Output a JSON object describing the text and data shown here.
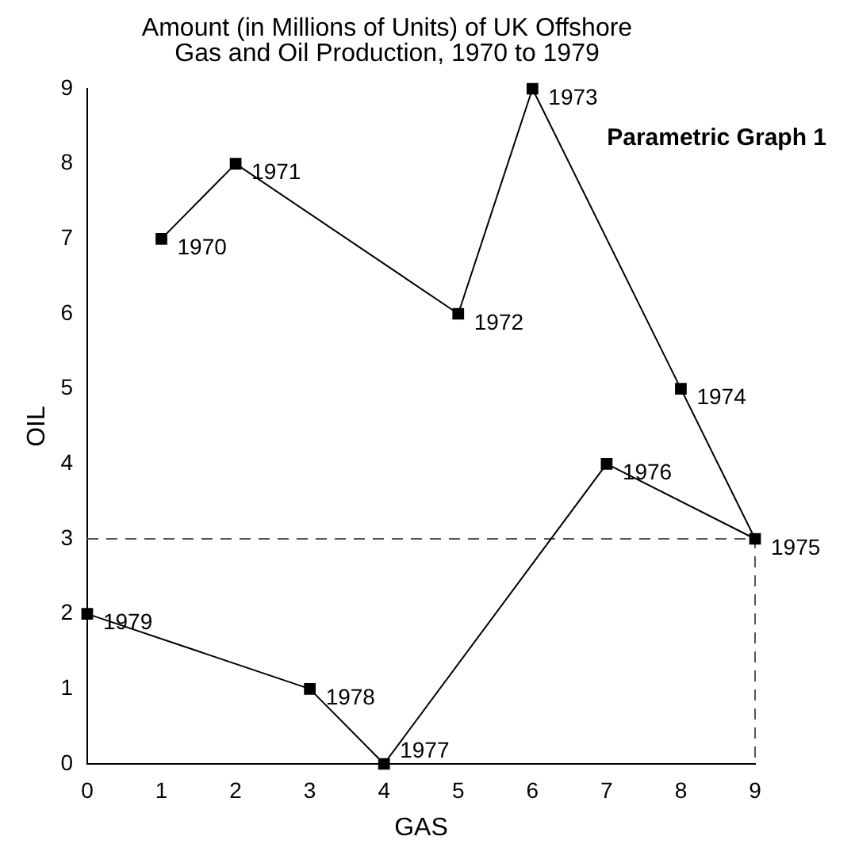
{
  "chart_data": {
    "type": "line",
    "title": "Amount (in Millions of Units) of UK Offshore Gas and Oil Production, 1970 to 1979",
    "xlabel": "GAS",
    "ylabel": "OIL",
    "series": [
      {
        "type": "line",
        "color": "#000000",
        "marker": "square",
        "line_style": "solid",
        "x": [
          1,
          2,
          5,
          6,
          8,
          9,
          7,
          4,
          3,
          0
        ],
        "values": [
          7,
          8,
          6,
          9,
          5,
          3,
          4,
          0,
          1,
          2
        ]
      },
      {
        "type": "line",
        "color": "#555555",
        "marker": "none",
        "line_style": "dashed",
        "x": [
          0,
          9,
          9
        ],
        "values": [
          3,
          3,
          0
        ]
      }
    ],
    "xlim": [
      0,
      9
    ],
    "xticks": [
      0,
      1,
      2,
      3,
      4,
      5,
      6,
      7,
      8,
      9
    ],
    "ylim": [
      0,
      9
    ],
    "yticks": [
      0,
      1,
      2,
      3,
      4,
      5,
      6,
      7,
      8,
      9
    ],
    "grid": false,
    "legend": false,
    "annotations": [
      "Parametric Graph 1",
      {
        "text": "1970",
        "x": 1,
        "y": 7
      },
      {
        "text": "1971",
        "x": 2,
        "y": 8
      },
      {
        "text": "1972",
        "x": 5,
        "y": 6
      },
      {
        "text": "1973",
        "x": 6,
        "y": 9
      },
      {
        "text": "1974",
        "x": 8,
        "y": 5
      },
      {
        "text": "1975",
        "x": 9,
        "y": 3
      },
      {
        "text": "1976",
        "x": 7,
        "y": 4
      },
      {
        "text": "1977",
        "x": 4,
        "y": 0
      },
      {
        "text": "1978",
        "x": 3,
        "y": 1
      },
      {
        "text": "1979",
        "x": 0,
        "y": 2
      }
    ]
  }
}
